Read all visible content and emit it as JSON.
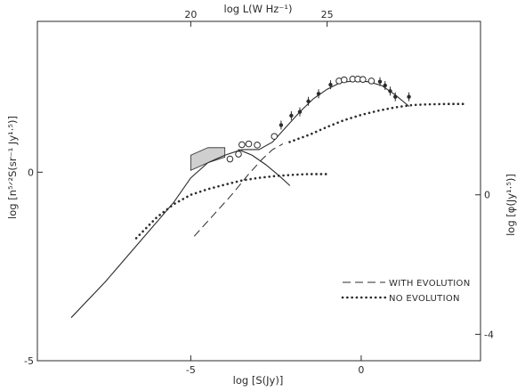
{
  "chart_data": {
    "type": "line",
    "xlabel": "log [S(Jy)]",
    "x2label": "log L(W Hz⁻¹)",
    "ylabel": "log [n⁵ᐟ²S(sr⁻¹ Jy¹·⁵)]",
    "y2label": "log [φ(Jy¹·⁵)]",
    "xlim": [
      -9.5,
      3.5
    ],
    "ylim": [
      -5,
      4
    ],
    "x_ticks": [
      "-5",
      "0"
    ],
    "y_ticks": [
      "-5",
      "0"
    ],
    "x2_ticks": [
      "20",
      "25"
    ],
    "x2_tick_positions": [
      -5.0,
      -1.0
    ],
    "y2_ticks": [
      "0",
      "-4"
    ],
    "y2_tick_positions": [
      -0.6,
      -4.3
    ],
    "grid": false,
    "legend_position": "bottom-right",
    "series": [
      {
        "name": "WITH EVOLUTION",
        "style": "dashed",
        "x": [
          -4.9,
          -4.3,
          -3.8,
          -3.3,
          -2.9,
          -2.6,
          -2.3
        ],
        "y": [
          -1.7,
          -1.1,
          -0.6,
          -0.05,
          0.35,
          0.6,
          0.75
        ]
      },
      {
        "name": "NO EVOLUTION",
        "style": "dotted",
        "x": [
          -6.6,
          -6.0,
          -5.5,
          -5.0,
          -4.5,
          -4.0,
          -3.5,
          -3.0,
          -2.5,
          -2.0,
          -1.5,
          -1.0
        ],
        "y": [
          -1.75,
          -1.2,
          -0.85,
          -0.6,
          -0.45,
          -0.33,
          -0.22,
          -0.15,
          -0.1,
          -0.07,
          -0.05,
          -0.05
        ]
      },
      {
        "name": "",
        "style": "dotted",
        "x": [
          -2.1,
          -1.5,
          -1.0,
          -0.5,
          0.0,
          0.5,
          1.0,
          1.5,
          2.0,
          2.5,
          3.0
        ],
        "y": [
          0.8,
          1.0,
          1.2,
          1.38,
          1.52,
          1.63,
          1.72,
          1.78,
          1.8,
          1.81,
          1.81
        ]
      },
      {
        "name": "",
        "style": "solid",
        "x": [
          -8.5,
          -7.5,
          -6.5,
          -5.5,
          -5.0,
          -4.5,
          -4.0,
          -3.5,
          -3.0,
          -2.6,
          -2.2,
          -1.8,
          -1.4,
          -1.0,
          -0.6,
          -0.2,
          0.2,
          0.6,
          1.0,
          1.4
        ],
        "y": [
          -3.85,
          -2.9,
          -1.85,
          -0.8,
          -0.15,
          0.25,
          0.45,
          0.6,
          0.6,
          0.8,
          1.2,
          1.6,
          1.95,
          2.2,
          2.38,
          2.42,
          2.4,
          2.3,
          2.05,
          1.75
        ]
      },
      {
        "name": "",
        "style": "solid",
        "x": [
          -3.6,
          -3.2,
          -2.8,
          -2.4,
          -2.1
        ],
        "y": [
          0.6,
          0.45,
          0.2,
          -0.1,
          -0.35
        ]
      }
    ],
    "open_points": [
      {
        "x": -3.85,
        "y": 0.35
      },
      {
        "x": -3.6,
        "y": 0.48
      },
      {
        "x": -3.5,
        "y": 0.73
      },
      {
        "x": -3.3,
        "y": 0.75
      },
      {
        "x": -3.05,
        "y": 0.72
      },
      {
        "x": -2.55,
        "y": 0.95
      },
      {
        "x": -0.65,
        "y": 2.42
      },
      {
        "x": -0.5,
        "y": 2.45
      },
      {
        "x": -0.25,
        "y": 2.47
      },
      {
        "x": -0.1,
        "y": 2.47
      },
      {
        "x": 0.05,
        "y": 2.46
      },
      {
        "x": 0.3,
        "y": 2.42
      }
    ],
    "filled_points": [
      {
        "x": -2.35,
        "y": 1.25
      },
      {
        "x": -2.05,
        "y": 1.5
      },
      {
        "x": -1.8,
        "y": 1.6
      },
      {
        "x": -1.55,
        "y": 1.88
      },
      {
        "x": -1.25,
        "y": 2.08
      },
      {
        "x": -0.9,
        "y": 2.32
      },
      {
        "x": 0.55,
        "y": 2.4
      },
      {
        "x": 0.7,
        "y": 2.3
      },
      {
        "x": 0.85,
        "y": 2.15
      },
      {
        "x": 1.0,
        "y": 2.0
      },
      {
        "x": 1.4,
        "y": 2.0
      }
    ],
    "shaded_band": {
      "x": [
        -5.0,
        -4.5,
        -4.0
      ],
      "y_low": [
        0.05,
        0.25,
        0.4
      ],
      "y_high": [
        0.45,
        0.65,
        0.65
      ]
    }
  }
}
